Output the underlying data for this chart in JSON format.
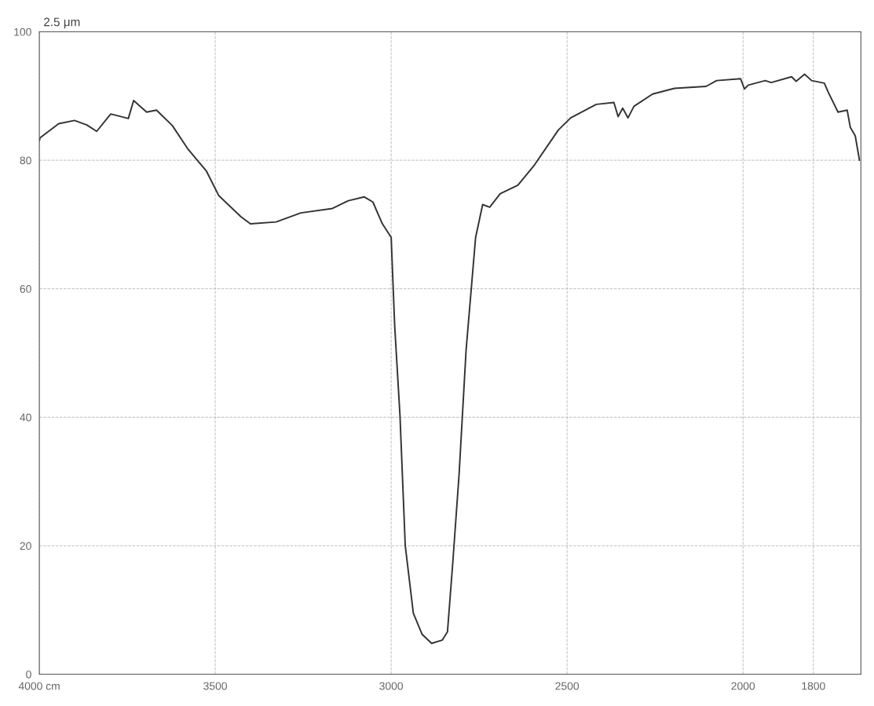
{
  "chart_data": {
    "type": "line",
    "annotations": [
      "2.5 μm"
    ],
    "x": [
      4000,
      3998,
      3945,
      3900,
      3865,
      3837,
      3797,
      3747,
      3732,
      3695,
      3667,
      3622,
      3577,
      3525,
      3490,
      3427,
      3400,
      3327,
      3257,
      3167,
      3122,
      3077,
      3052,
      3025,
      3000,
      2990,
      2975,
      2960,
      2937,
      2912,
      2885,
      2855,
      2840,
      2825,
      2807,
      2787,
      2760,
      2740,
      2720,
      2690,
      2640,
      2595,
      2525,
      2490,
      2417,
      2367,
      2355,
      2342,
      2327,
      2310,
      2257,
      2195,
      2105,
      2075,
      2007,
      1996,
      1985,
      1937,
      1920,
      1862,
      1849,
      1825,
      1805,
      1769,
      1757,
      1730,
      1704,
      1695,
      1681,
      1669
    ],
    "series": [
      {
        "color": "#333333",
        "values": [
          83.0,
          83.5,
          85.7,
          86.2,
          85.5,
          84.5,
          87.2,
          86.5,
          89.3,
          87.5,
          87.8,
          85.4,
          81.7,
          78.3,
          74.5,
          71.2,
          70.1,
          70.4,
          71.8,
          72.5,
          73.7,
          74.3,
          73.5,
          70.1,
          68.0,
          54.2,
          40.3,
          20.0,
          9.5,
          6.2,
          4.8,
          5.3,
          6.6,
          17.3,
          31.1,
          50.5,
          68.0,
          73.1,
          72.7,
          74.8,
          76.1,
          79.1,
          84.7,
          86.6,
          88.7,
          89.0,
          86.8,
          88.1,
          86.6,
          88.4,
          90.3,
          91.2,
          91.5,
          92.4,
          92.7,
          91.1,
          91.7,
          92.4,
          92.1,
          93.0,
          92.3,
          93.4,
          92.4,
          92.0,
          90.5,
          87.5,
          87.8,
          85.1,
          83.8,
          80.0
        ]
      }
    ],
    "xlim": [
      4000,
      1665
    ],
    "xticks": [
      {
        "value": 4000,
        "label": "4000 cm"
      },
      3500,
      3000,
      2500,
      2000,
      1800
    ],
    "ylim": [
      0,
      100
    ],
    "yticks": [
      0,
      20,
      40,
      60,
      80,
      100
    ],
    "grid": true,
    "marker": "none",
    "line_style": "solid"
  }
}
